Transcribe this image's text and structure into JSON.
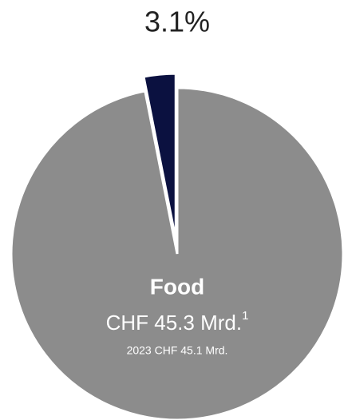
{
  "chart_data": {
    "type": "pie",
    "categories": [
      null,
      "Food"
    ],
    "values": [
      3.1,
      96.9
    ],
    "value_labels": [
      "3.1%",
      null
    ],
    "colors": [
      "#0b1140",
      "#8c8c8c"
    ],
    "amount": "CHF 45.3 Mrd.",
    "footnote_marker": "1",
    "comparison": "2023 CHF 45.1 Mrd."
  }
}
